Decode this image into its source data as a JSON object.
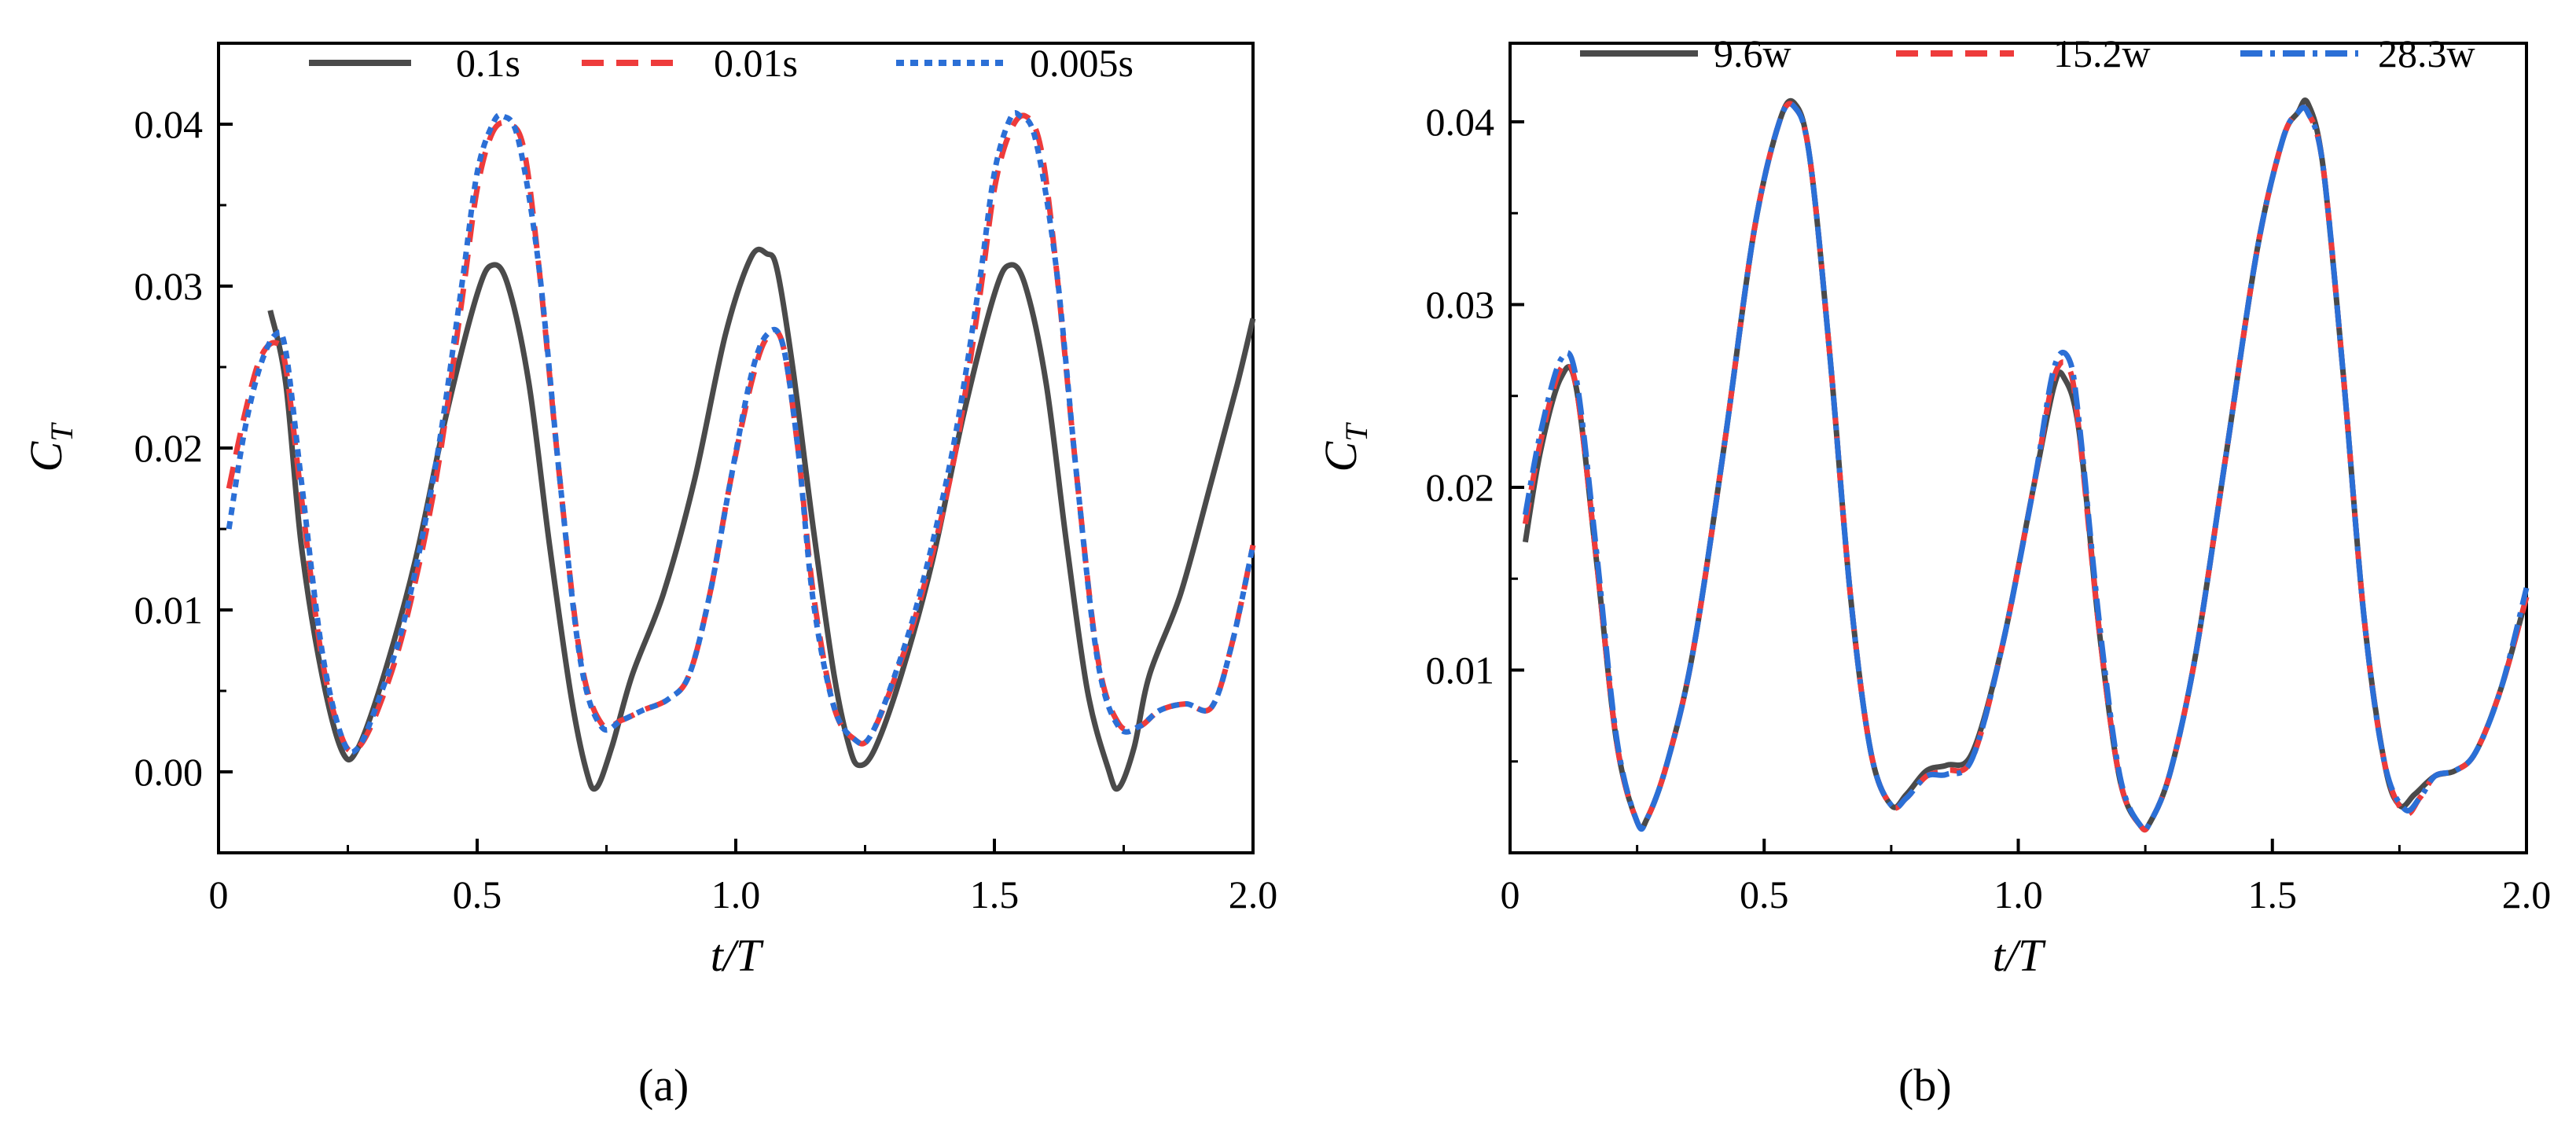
{
  "chart_data": [
    {
      "type": "line",
      "panel_label": "(a)",
      "panel_letter": "a",
      "xlabel": "t/T",
      "ylabel": "C_T",
      "ylabel_main": "C",
      "ylabel_sub": "T",
      "xlim": [
        0,
        2.0
      ],
      "ylim": [
        -0.005,
        0.045
      ],
      "xticks": [
        0,
        0.5,
        1.0,
        1.5,
        2.0
      ],
      "xtick_labels": [
        "0",
        "0.5",
        "1.0",
        "1.5",
        "2.0"
      ],
      "yticks": [
        0.0,
        0.01,
        0.02,
        0.03,
        0.04
      ],
      "ytick_labels": [
        "0.00",
        "0.01",
        "0.02",
        "0.03",
        "0.04"
      ],
      "grid": false,
      "legend_position": "top",
      "series": [
        {
          "name": "0.1s",
          "color": "#4a4a4a",
          "dash": "solid",
          "x": [
            0.1,
            0.13,
            0.16,
            0.2,
            0.24,
            0.27,
            0.32,
            0.38,
            0.44,
            0.5,
            0.53,
            0.56,
            0.6,
            0.64,
            0.68,
            0.71,
            0.73,
            0.76,
            0.8,
            0.86,
            0.92,
            0.98,
            1.03,
            1.06,
            1.08,
            1.11,
            1.15,
            1.19,
            1.22,
            1.24,
            1.27,
            1.32,
            1.38,
            1.44,
            1.5,
            1.53,
            1.56,
            1.6,
            1.64,
            1.68,
            1.72,
            1.74,
            1.77,
            1.8,
            1.86,
            1.92,
            1.97,
            2.0
          ],
          "y": [
            0.0285,
            0.024,
            0.014,
            0.006,
            0.0012,
            0.0015,
            0.006,
            0.013,
            0.022,
            0.0295,
            0.0313,
            0.03,
            0.024,
            0.014,
            0.005,
            0.0002,
            -0.001,
            0.0015,
            0.006,
            0.011,
            0.018,
            0.027,
            0.0318,
            0.032,
            0.031,
            0.025,
            0.015,
            0.006,
            0.0015,
            0.0004,
            0.0015,
            0.006,
            0.013,
            0.022,
            0.0295,
            0.0313,
            0.03,
            0.024,
            0.014,
            0.005,
            0.0002,
            -0.001,
            0.0015,
            0.006,
            0.011,
            0.018,
            0.024,
            0.028
          ]
        },
        {
          "name": "0.01s",
          "color": "#ee3b3b",
          "dash": "dashed",
          "x": [
            0.02,
            0.05,
            0.08,
            0.11,
            0.13,
            0.16,
            0.2,
            0.24,
            0.27,
            0.31,
            0.36,
            0.42,
            0.47,
            0.5,
            0.53,
            0.56,
            0.59,
            0.62,
            0.66,
            0.7,
            0.74,
            0.78,
            0.82,
            0.87,
            0.91,
            0.95,
            0.99,
            1.03,
            1.06,
            1.09,
            1.12,
            1.15,
            1.19,
            1.23,
            1.26,
            1.31,
            1.36,
            1.42,
            1.47,
            1.5,
            1.53,
            1.56,
            1.59,
            1.62,
            1.66,
            1.7,
            1.74,
            1.78,
            1.82,
            1.87,
            1.92,
            1.96,
            2.0
          ],
          "y": [
            0.0175,
            0.022,
            0.0255,
            0.0265,
            0.025,
            0.017,
            0.007,
            0.002,
            0.0015,
            0.004,
            0.009,
            0.018,
            0.029,
            0.036,
            0.0395,
            0.04,
            0.0385,
            0.031,
            0.018,
            0.007,
            0.003,
            0.0032,
            0.0038,
            0.0045,
            0.006,
            0.011,
            0.018,
            0.024,
            0.0268,
            0.0265,
            0.02,
            0.011,
            0.004,
            0.002,
            0.0022,
            0.006,
            0.011,
            0.019,
            0.029,
            0.036,
            0.0395,
            0.0405,
            0.0385,
            0.031,
            0.018,
            0.007,
            0.003,
            0.0028,
            0.0038,
            0.0042,
            0.004,
            0.008,
            0.014
          ]
        },
        {
          "name": "0.005s",
          "color": "#2b6fd6",
          "dash": "dotted",
          "x": [
            0.02,
            0.05,
            0.08,
            0.11,
            0.13,
            0.16,
            0.2,
            0.24,
            0.27,
            0.31,
            0.36,
            0.42,
            0.47,
            0.5,
            0.53,
            0.55,
            0.58,
            0.62,
            0.66,
            0.7,
            0.74,
            0.78,
            0.82,
            0.87,
            0.91,
            0.95,
            0.99,
            1.03,
            1.06,
            1.09,
            1.12,
            1.15,
            1.19,
            1.23,
            1.26,
            1.31,
            1.36,
            1.42,
            1.47,
            1.5,
            1.53,
            1.55,
            1.58,
            1.62,
            1.66,
            1.7,
            1.74,
            1.78,
            1.82,
            1.87,
            1.92,
            1.96,
            2.0
          ],
          "y": [
            0.015,
            0.021,
            0.025,
            0.027,
            0.026,
            0.018,
            0.0075,
            0.002,
            0.0015,
            0.0045,
            0.0095,
            0.019,
            0.03,
            0.037,
            0.04,
            0.0405,
            0.039,
            0.031,
            0.018,
            0.0068,
            0.0028,
            0.0032,
            0.0038,
            0.0045,
            0.006,
            0.011,
            0.018,
            0.0245,
            0.027,
            0.0265,
            0.02,
            0.0105,
            0.004,
            0.002,
            0.0022,
            0.0062,
            0.0115,
            0.02,
            0.03,
            0.037,
            0.0403,
            0.0405,
            0.039,
            0.031,
            0.018,
            0.0068,
            0.0028,
            0.0028,
            0.0038,
            0.0042,
            0.004,
            0.008,
            0.014
          ]
        }
      ]
    },
    {
      "type": "line",
      "panel_label": "(b)",
      "panel_letter": "b",
      "xlabel": "t/T",
      "ylabel": "C_T",
      "ylabel_main": "C",
      "ylabel_sub": "T",
      "xlim": [
        0,
        2.0
      ],
      "ylim": [
        0.0,
        0.0443
      ],
      "xticks": [
        0,
        0.5,
        1.0,
        1.5,
        2.0
      ],
      "xtick_labels": [
        "0",
        "0.5",
        "1.0",
        "1.5",
        "2.0"
      ],
      "yticks": [
        0.01,
        0.02,
        0.03,
        0.04
      ],
      "ytick_labels": [
        "0.01",
        "0.02",
        "0.03",
        "0.04"
      ],
      "grid": false,
      "legend_position": "top",
      "series": [
        {
          "name": "9.6w",
          "color": "#4a4a4a",
          "dash": "solid",
          "x": [
            0.03,
            0.06,
            0.1,
            0.13,
            0.17,
            0.21,
            0.25,
            0.27,
            0.31,
            0.36,
            0.42,
            0.48,
            0.53,
            0.56,
            0.59,
            0.63,
            0.67,
            0.71,
            0.75,
            0.78,
            0.82,
            0.86,
            0.91,
            0.97,
            1.03,
            1.07,
            1.09,
            1.12,
            1.16,
            1.2,
            1.24,
            1.26,
            1.3,
            1.35,
            1.41,
            1.47,
            1.52,
            1.55,
            1.57,
            1.6,
            1.64,
            1.68,
            1.72,
            1.75,
            1.78,
            1.82,
            1.86,
            1.9,
            1.95,
            2.0
          ],
          "y": [
            0.017,
            0.022,
            0.026,
            0.0255,
            0.016,
            0.006,
            0.0017,
            0.0019,
            0.005,
            0.011,
            0.022,
            0.034,
            0.04,
            0.041,
            0.038,
            0.027,
            0.014,
            0.0055,
            0.0026,
            0.0032,
            0.0045,
            0.0048,
            0.0055,
            0.0115,
            0.02,
            0.0255,
            0.026,
            0.023,
            0.012,
            0.004,
            0.0015,
            0.0017,
            0.0045,
            0.011,
            0.022,
            0.033,
            0.039,
            0.0405,
            0.041,
            0.0375,
            0.026,
            0.013,
            0.005,
            0.0026,
            0.0032,
            0.0042,
            0.0045,
            0.0055,
            0.009,
            0.014
          ]
        },
        {
          "name": "15.2w",
          "color": "#ee3b3b",
          "dash": "dashed",
          "x": [
            0.03,
            0.06,
            0.1,
            0.13,
            0.17,
            0.21,
            0.25,
            0.27,
            0.31,
            0.36,
            0.42,
            0.48,
            0.53,
            0.56,
            0.59,
            0.63,
            0.67,
            0.71,
            0.75,
            0.78,
            0.82,
            0.86,
            0.91,
            0.97,
            1.03,
            1.07,
            1.1,
            1.12,
            1.16,
            1.2,
            1.24,
            1.26,
            1.3,
            1.35,
            1.41,
            1.47,
            1.52,
            1.55,
            1.57,
            1.6,
            1.64,
            1.68,
            1.72,
            1.76,
            1.79,
            1.82,
            1.86,
            1.9,
            1.95,
            2.0
          ],
          "y": [
            0.018,
            0.0225,
            0.0265,
            0.0255,
            0.016,
            0.006,
            0.0017,
            0.0019,
            0.005,
            0.011,
            0.022,
            0.034,
            0.04,
            0.0408,
            0.038,
            0.027,
            0.014,
            0.0055,
            0.0026,
            0.003,
            0.0042,
            0.0045,
            0.0052,
            0.0115,
            0.02,
            0.026,
            0.0265,
            0.023,
            0.012,
            0.004,
            0.0015,
            0.0017,
            0.0045,
            0.011,
            0.022,
            0.033,
            0.039,
            0.0405,
            0.0405,
            0.0375,
            0.026,
            0.013,
            0.005,
            0.0022,
            0.003,
            0.0042,
            0.0045,
            0.0055,
            0.009,
            0.014
          ]
        },
        {
          "name": "28.3w",
          "color": "#2b6fd6",
          "dash": "dashdot",
          "x": [
            0.03,
            0.06,
            0.1,
            0.13,
            0.17,
            0.21,
            0.25,
            0.27,
            0.31,
            0.36,
            0.42,
            0.48,
            0.53,
            0.56,
            0.59,
            0.63,
            0.67,
            0.71,
            0.75,
            0.78,
            0.82,
            0.86,
            0.91,
            0.97,
            1.03,
            1.07,
            1.1,
            1.12,
            1.16,
            1.2,
            1.24,
            1.26,
            1.3,
            1.35,
            1.41,
            1.47,
            1.52,
            1.55,
            1.57,
            1.6,
            1.64,
            1.68,
            1.72,
            1.76,
            1.79,
            1.82,
            1.86,
            1.9,
            1.95,
            2.0
          ],
          "y": [
            0.0185,
            0.023,
            0.027,
            0.026,
            0.0165,
            0.0062,
            0.0017,
            0.0019,
            0.005,
            0.011,
            0.022,
            0.034,
            0.04,
            0.0408,
            0.038,
            0.027,
            0.014,
            0.0055,
            0.0026,
            0.003,
            0.0042,
            0.0043,
            0.0052,
            0.0115,
            0.02,
            0.0265,
            0.027,
            0.0235,
            0.0125,
            0.0042,
            0.0015,
            0.0017,
            0.0045,
            0.011,
            0.022,
            0.033,
            0.039,
            0.0405,
            0.0405,
            0.0375,
            0.026,
            0.013,
            0.005,
            0.0024,
            0.003,
            0.0042,
            0.0045,
            0.0055,
            0.009,
            0.0145
          ]
        }
      ]
    }
  ]
}
